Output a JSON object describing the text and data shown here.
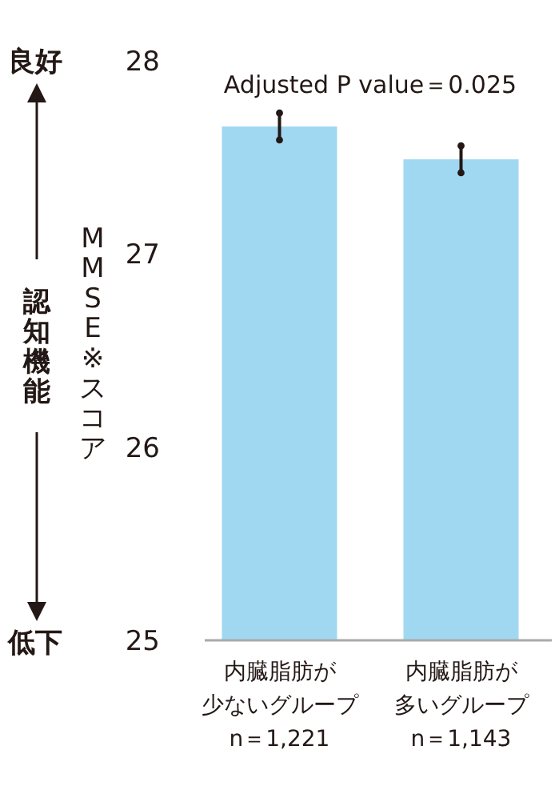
{
  "chart_data": {
    "type": "bar",
    "ylabel": "MMSE※スコア",
    "categories": [
      "内臓脂肪が少ないグループ n＝1,221",
      "内臓脂肪が多いグループ n＝1,143"
    ],
    "values": [
      27.66,
      27.49
    ],
    "errors": [
      0.07,
      0.07
    ],
    "color": "#a0d8f2",
    "ylim": [
      25,
      28
    ],
    "yticks": [
      25,
      26,
      27,
      28
    ],
    "grid": false,
    "annotations": [
      "Adjusted P value＝0.025",
      "良好",
      "認知機能",
      "低下"
    ]
  }
}
